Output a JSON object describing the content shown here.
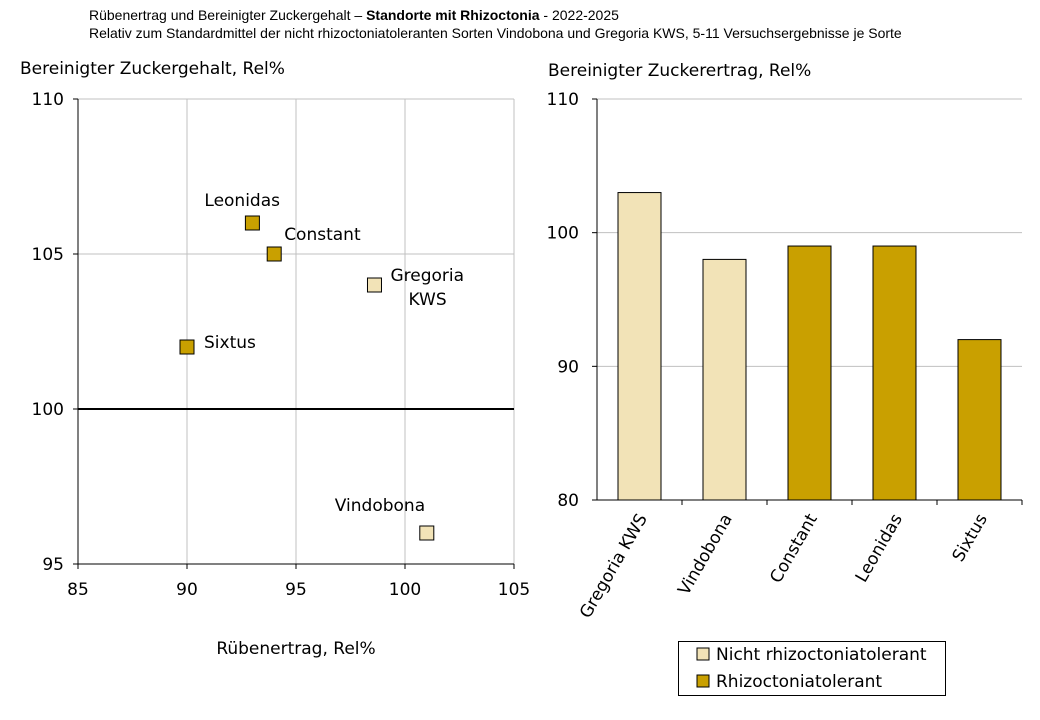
{
  "header": {
    "title_pre": "Rübenertrag und Bereinigter Zuckergehalt – ",
    "title_bold": "Standorte mit Rhizoctonia",
    "title_post": " - 2022-2025",
    "subtitle": "Relativ zum Standardmittel der nicht rhizoctoniatoleranten Sorten Vindobona und Gregoria KWS, 5-11 Versuchsergebnisse je Sorte"
  },
  "colors": {
    "nicht": "#F2E3B7",
    "tolerant": "#C9A000"
  },
  "chart_data": [
    {
      "type": "scatter",
      "ylabel": "Bereinigter Zuckergehalt, Rel%",
      "xlabel": "Rübenertrag, Rel%",
      "xlim": [
        85,
        105
      ],
      "ylim": [
        95,
        110
      ],
      "xticks": [
        85,
        90,
        95,
        100,
        105
      ],
      "yticks": [
        95,
        100,
        105,
        110
      ],
      "grid": true,
      "points": [
        {
          "label": "Leonidas",
          "x": 93,
          "y": 106,
          "group": "tolerant"
        },
        {
          "label": "Constant",
          "x": 94,
          "y": 105,
          "group": "tolerant"
        },
        {
          "label": "Gregoria KWS",
          "x": 98.6,
          "y": 104,
          "group": "nicht"
        },
        {
          "label": "Sixtus",
          "x": 90,
          "y": 102,
          "group": "tolerant"
        },
        {
          "label": "Vindobona",
          "x": 101,
          "y": 96,
          "group": "nicht"
        }
      ]
    },
    {
      "type": "bar",
      "ylabel": "Bereinigter Zuckerertrag, Rel%",
      "ylim": [
        80,
        110
      ],
      "yticks": [
        80,
        90,
        100,
        110
      ],
      "grid": true,
      "categories": [
        "Gregoria KWS",
        "Vindobona",
        "Constant",
        "Leonidas",
        "Sixtus"
      ],
      "values": [
        103,
        98,
        99,
        99,
        92
      ],
      "groups": [
        "nicht",
        "nicht",
        "tolerant",
        "tolerant",
        "tolerant"
      ],
      "legend": [
        {
          "label": "Nicht rhizoctoniatolerant",
          "group": "nicht"
        },
        {
          "label": "Rhizoctoniatolerant",
          "group": "tolerant"
        }
      ],
      "legend_position": "bottom"
    }
  ]
}
